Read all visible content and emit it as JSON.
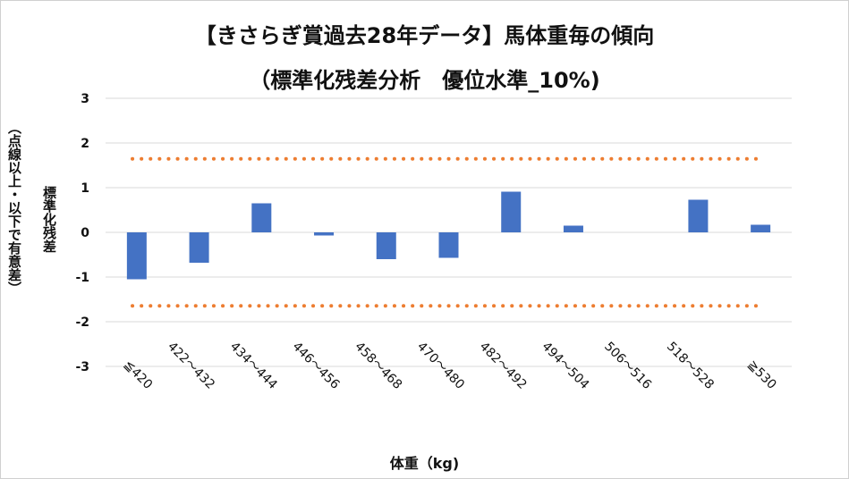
{
  "chart_data": {
    "type": "bar",
    "title": "【きさらぎ賞過去28年データ】馬体重毎の傾向",
    "subtitle": "（標準化残差分析　優位水準_10%)",
    "xlabel": "体重（kg)",
    "ylabel": "標準化残差",
    "ylabel_note": "（点線以上・以下で有意差）",
    "categories": [
      "≦420",
      "422～432",
      "434～444",
      "446～456",
      "458～468",
      "470～480",
      "482～492",
      "494～504",
      "506～516",
      "518～528",
      "≧530"
    ],
    "values": [
      -1.05,
      -0.68,
      0.65,
      -0.07,
      -0.6,
      -0.57,
      0.91,
      0.15,
      0.0,
      0.73,
      0.17
    ],
    "ylim": [
      -3,
      3
    ],
    "yticks": [
      "3",
      "2",
      "1",
      "0",
      "-1",
      "-2",
      "-3"
    ],
    "threshold_upper": 1.645,
    "threshold_lower": -1.645,
    "grid": true,
    "colors": {
      "bar": "#4472C4",
      "threshold": "#ED7D31",
      "grid": "#D9D9D9"
    }
  }
}
